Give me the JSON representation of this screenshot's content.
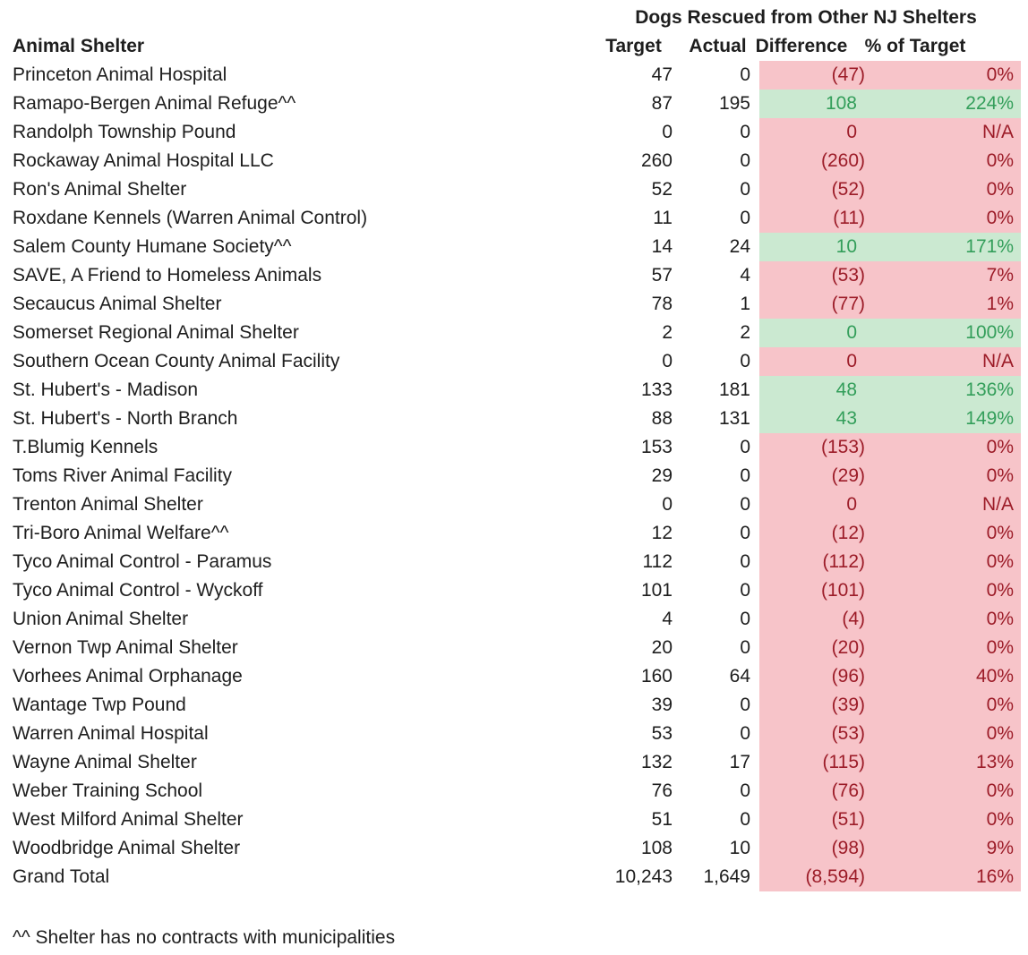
{
  "title": "Dogs Rescued from Other NJ Shelters",
  "columns": [
    "Animal Shelter",
    "Target",
    "Actual",
    "Difference",
    "% of Target"
  ],
  "colors": {
    "negative_bg": "#f7c4c9",
    "negative_text": "#9c1c28",
    "positive_bg": "#cbe9d1",
    "positive_text": "#339e5a"
  },
  "rows": [
    {
      "shelter": "Princeton Animal Hospital",
      "target": "47",
      "actual": "0",
      "difference": "(47)",
      "pct": "0%",
      "highlight": "red"
    },
    {
      "shelter": "Ramapo-Bergen Animal Refuge^^",
      "target": "87",
      "actual": "195",
      "difference": "108",
      "pct": "224%",
      "highlight": "green"
    },
    {
      "shelter": "Randolph Township Pound",
      "target": "0",
      "actual": "0",
      "difference": "0",
      "pct": "N/A",
      "highlight": "red"
    },
    {
      "shelter": "Rockaway Animal Hospital LLC",
      "target": "260",
      "actual": "0",
      "difference": "(260)",
      "pct": "0%",
      "highlight": "red"
    },
    {
      "shelter": "Ron's Animal Shelter",
      "target": "52",
      "actual": "0",
      "difference": "(52)",
      "pct": "0%",
      "highlight": "red"
    },
    {
      "shelter": "Roxdane Kennels (Warren Animal Control)",
      "target": "11",
      "actual": "0",
      "difference": "(11)",
      "pct": "0%",
      "highlight": "red"
    },
    {
      "shelter": "Salem County Humane Society^^",
      "target": "14",
      "actual": "24",
      "difference": "10",
      "pct": "171%",
      "highlight": "green"
    },
    {
      "shelter": "SAVE, A Friend to Homeless Animals",
      "target": "57",
      "actual": "4",
      "difference": "(53)",
      "pct": "7%",
      "highlight": "red"
    },
    {
      "shelter": "Secaucus Animal Shelter",
      "target": "78",
      "actual": "1",
      "difference": "(77)",
      "pct": "1%",
      "highlight": "red"
    },
    {
      "shelter": "Somerset Regional Animal Shelter",
      "target": "2",
      "actual": "2",
      "difference": "0",
      "pct": "100%",
      "highlight": "green"
    },
    {
      "shelter": "Southern Ocean County Animal Facility",
      "target": "0",
      "actual": "0",
      "difference": "0",
      "pct": "N/A",
      "highlight": "red"
    },
    {
      "shelter": "St. Hubert's - Madison",
      "target": "133",
      "actual": "181",
      "difference": "48",
      "pct": "136%",
      "highlight": "green"
    },
    {
      "shelter": "St. Hubert's - North Branch",
      "target": "88",
      "actual": "131",
      "difference": "43",
      "pct": "149%",
      "highlight": "green"
    },
    {
      "shelter": "T.Blumig Kennels",
      "target": "153",
      "actual": "0",
      "difference": "(153)",
      "pct": "0%",
      "highlight": "red"
    },
    {
      "shelter": "Toms River Animal Facility",
      "target": "29",
      "actual": "0",
      "difference": "(29)",
      "pct": "0%",
      "highlight": "red"
    },
    {
      "shelter": "Trenton Animal Shelter",
      "target": "0",
      "actual": "0",
      "difference": "0",
      "pct": "N/A",
      "highlight": "red"
    },
    {
      "shelter": "Tri-Boro Animal Welfare^^",
      "target": "12",
      "actual": "0",
      "difference": "(12)",
      "pct": "0%",
      "highlight": "red"
    },
    {
      "shelter": "Tyco Animal Control - Paramus",
      "target": "112",
      "actual": "0",
      "difference": "(112)",
      "pct": "0%",
      "highlight": "red"
    },
    {
      "shelter": "Tyco Animal Control - Wyckoff",
      "target": "101",
      "actual": "0",
      "difference": "(101)",
      "pct": "0%",
      "highlight": "red"
    },
    {
      "shelter": "Union Animal Shelter",
      "target": "4",
      "actual": "0",
      "difference": "(4)",
      "pct": "0%",
      "highlight": "red"
    },
    {
      "shelter": "Vernon Twp Animal Shelter",
      "target": "20",
      "actual": "0",
      "difference": "(20)",
      "pct": "0%",
      "highlight": "red"
    },
    {
      "shelter": "Vorhees Animal Orphanage",
      "target": "160",
      "actual": "64",
      "difference": "(96)",
      "pct": "40%",
      "highlight": "red"
    },
    {
      "shelter": "Wantage Twp Pound",
      "target": "39",
      "actual": "0",
      "difference": "(39)",
      "pct": "0%",
      "highlight": "red"
    },
    {
      "shelter": "Warren Animal Hospital",
      "target": "53",
      "actual": "0",
      "difference": "(53)",
      "pct": "0%",
      "highlight": "red"
    },
    {
      "shelter": "Wayne Animal Shelter",
      "target": "132",
      "actual": "17",
      "difference": "(115)",
      "pct": "13%",
      "highlight": "red"
    },
    {
      "shelter": "Weber Training School",
      "target": "76",
      "actual": "0",
      "difference": "(76)",
      "pct": "0%",
      "highlight": "red"
    },
    {
      "shelter": "West Milford Animal Shelter",
      "target": "51",
      "actual": "0",
      "difference": "(51)",
      "pct": "0%",
      "highlight": "red"
    },
    {
      "shelter": "Woodbridge Animal Shelter",
      "target": "108",
      "actual": "10",
      "difference": "(98)",
      "pct": "9%",
      "highlight": "red"
    },
    {
      "shelter": "Grand Total",
      "target": "10,243",
      "actual": "1,649",
      "difference": "(8,594)",
      "pct": "16%",
      "highlight": "red"
    }
  ],
  "footnote": "^^ Shelter has no contracts with municipalities"
}
